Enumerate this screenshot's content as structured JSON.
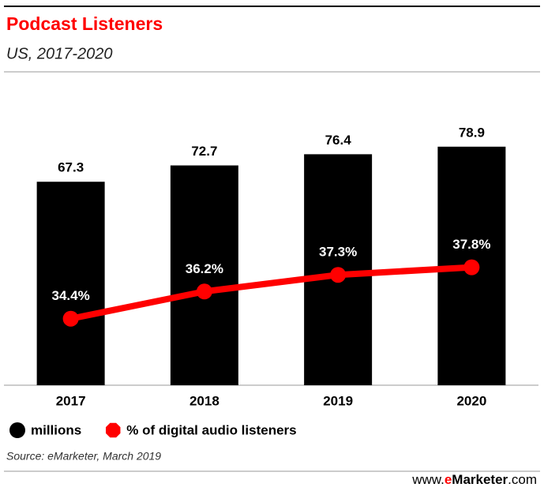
{
  "chart_data": {
    "type": "bar",
    "title": "Podcast Listeners",
    "subtitle": "US, 2017-2020",
    "categories": [
      "2017",
      "2018",
      "2019",
      "2020"
    ],
    "series": [
      {
        "name": "millions",
        "type": "bar",
        "color": "#000000",
        "axis": "y",
        "values": [
          67.3,
          72.7,
          76.4,
          78.9
        ]
      },
      {
        "name": "% of digital audio listeners",
        "type": "line",
        "color": "#ff0000",
        "axis": "y2",
        "values": [
          34.4,
          36.2,
          37.3,
          37.8
        ],
        "value_labels": [
          "34.4%",
          "36.2%",
          "37.3%",
          "37.8%"
        ]
      }
    ],
    "ylim": [
      0,
      100
    ],
    "y2lim": [
      30,
      50
    ],
    "source": "Source: eMarketer, March 2019",
    "brand": [
      "www.",
      "e",
      "Marketer",
      ".com"
    ]
  }
}
